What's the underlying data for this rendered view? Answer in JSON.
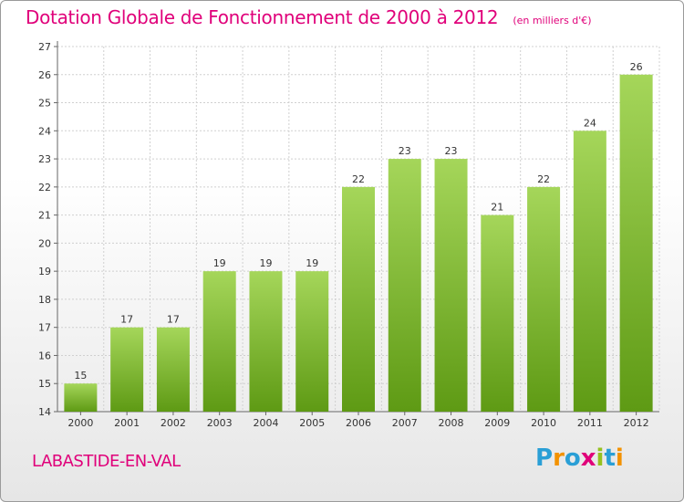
{
  "title": "Dotation Globale de Fonctionnement de 2000 à 2012",
  "subtitle": "(en milliers d'€)",
  "city": "LABASTIDE-EN-VAL",
  "logo": {
    "text": "Proxiti",
    "letters": [
      "P",
      "r",
      "o",
      "x",
      "i",
      "t",
      "i"
    ],
    "colors": [
      "#2a9fd6",
      "#f39200",
      "#2a9fd6",
      "#e0007a",
      "#95c11f",
      "#2a9fd6",
      "#f39200"
    ]
  },
  "colors": {
    "accent": "#e0007a",
    "bar_light": "#a5d65a",
    "bar_dark": "#5e9a14",
    "grid": "#d0d0d0"
  },
  "chart_data": {
    "type": "bar",
    "categories": [
      "2000",
      "2001",
      "2002",
      "2003",
      "2004",
      "2005",
      "2006",
      "2007",
      "2008",
      "2009",
      "2010",
      "2011",
      "2012"
    ],
    "values": [
      15,
      17,
      17,
      19,
      19,
      19,
      22,
      23,
      23,
      21,
      22,
      24,
      26
    ],
    "ylim": [
      14,
      27
    ],
    "yticks": [
      14,
      15,
      16,
      17,
      18,
      19,
      20,
      21,
      22,
      23,
      24,
      25,
      26,
      27
    ],
    "title": "Dotation Globale de Fonctionnement de 2000 à 2012",
    "xlabel": "",
    "ylabel": "",
    "grid": true
  }
}
